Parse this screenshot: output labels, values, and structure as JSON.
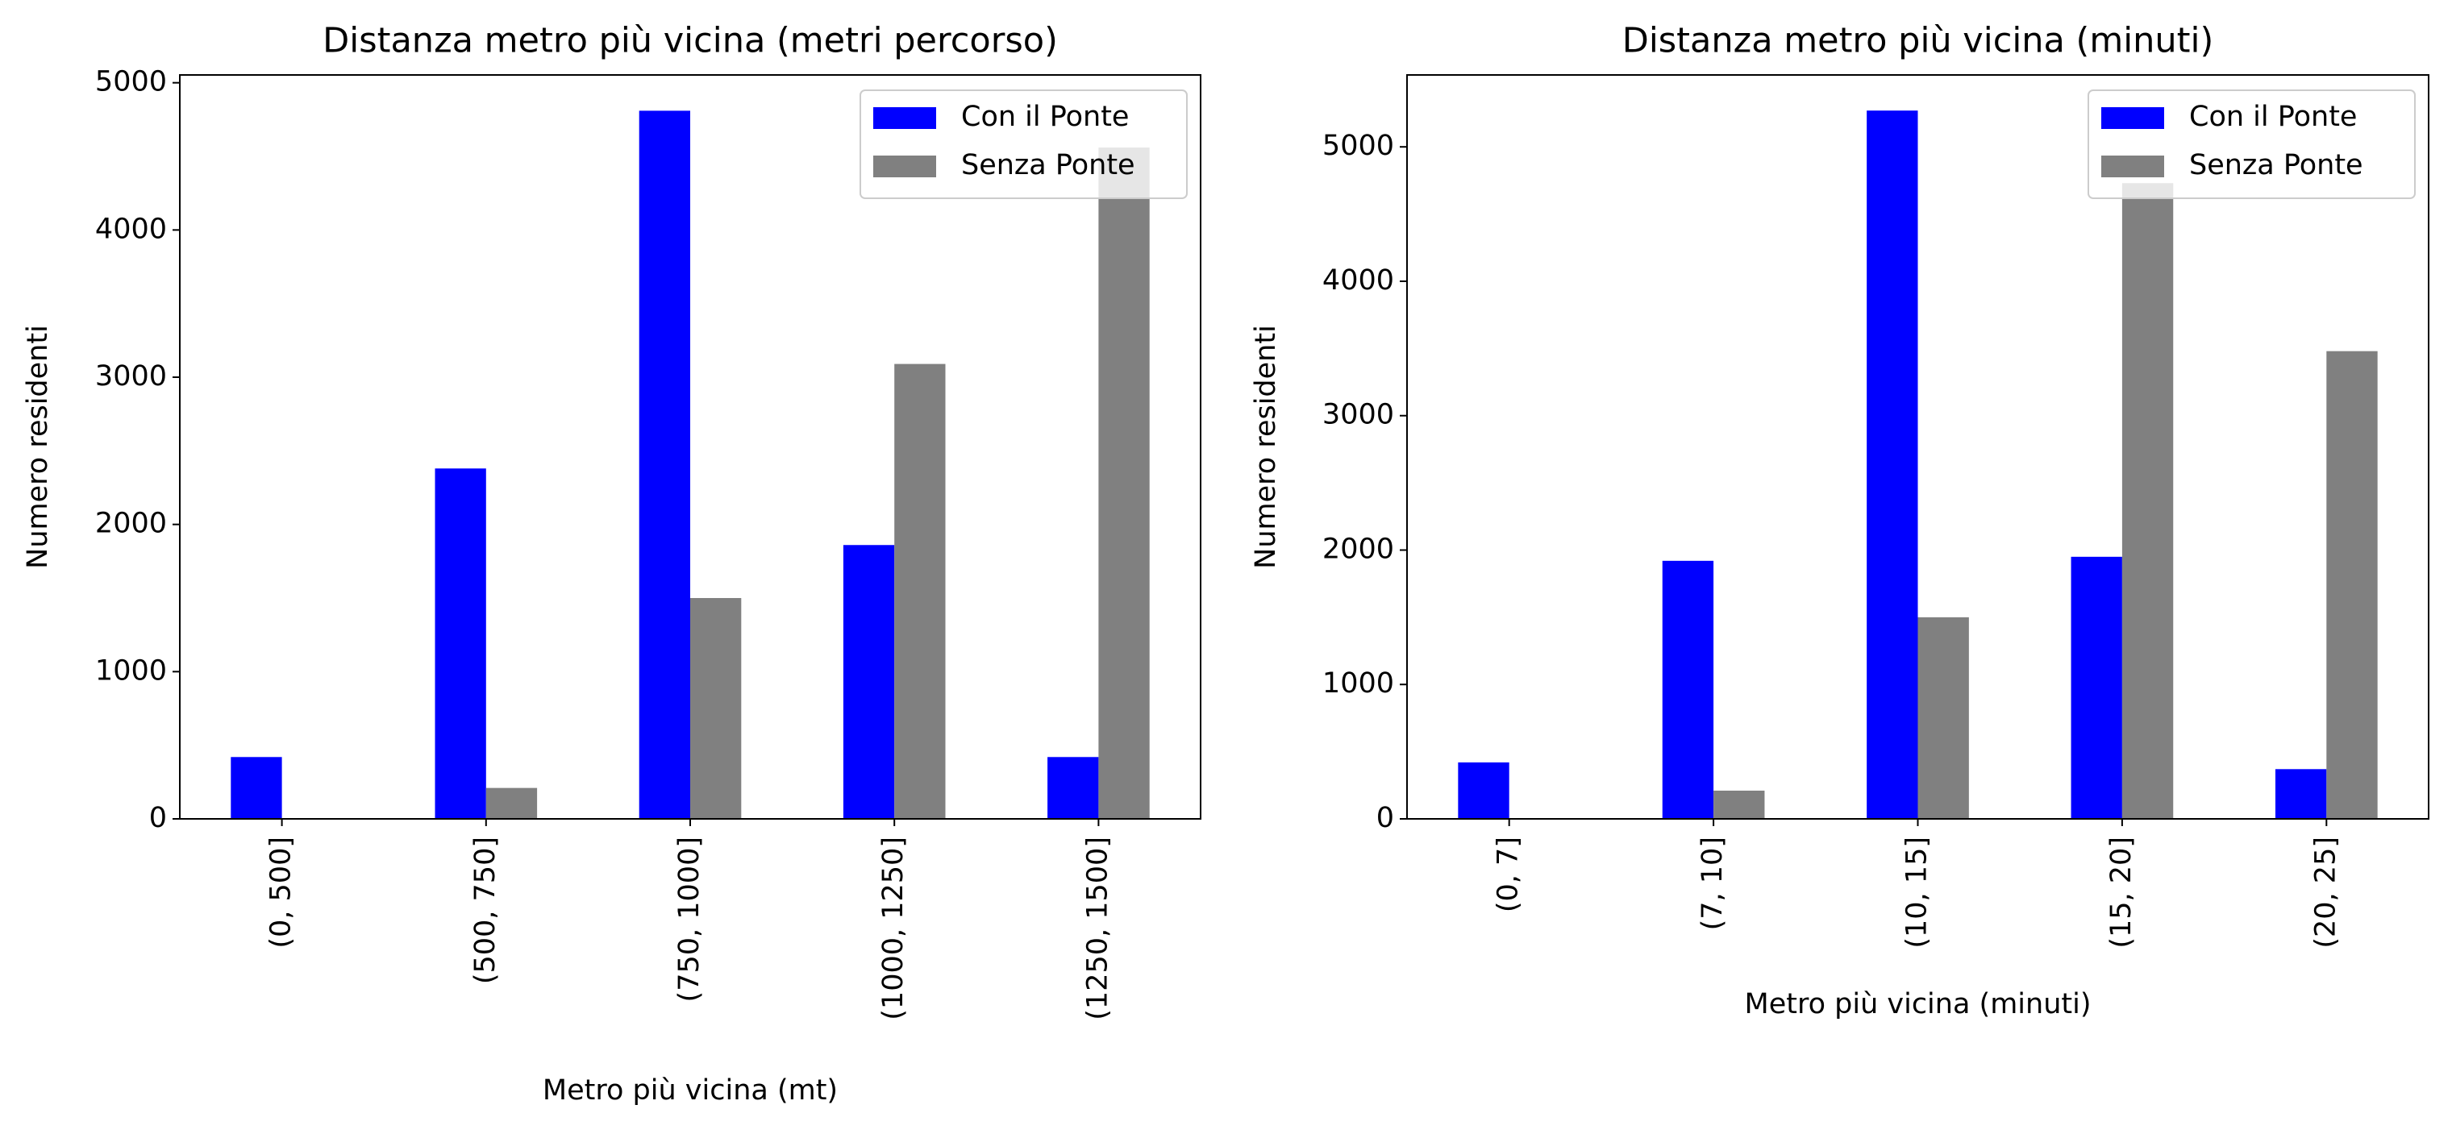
{
  "chart_data": [
    {
      "type": "bar",
      "title": "Distanza metro più vicina (metri percorso)",
      "x_label": "Metro più vicina (mt)",
      "y_label": "Numero residenti",
      "categories": [
        "(0, 500]",
        "(500, 750]",
        "(750, 1000]",
        "(1000, 1250]",
        "(1250, 1500]"
      ],
      "series": [
        {
          "name": "Con il Ponte",
          "color": "#0000ff",
          "values": [
            420,
            2380,
            4810,
            1860,
            420
          ]
        },
        {
          "name": "Senza Ponte",
          "color": "#808080",
          "values": [
            0,
            210,
            1500,
            3090,
            4560
          ]
        }
      ],
      "ylim": [
        0,
        5053
      ],
      "yticks": [
        0,
        1000,
        2000,
        3000,
        4000,
        5000
      ],
      "legend": "upper right"
    },
    {
      "type": "bar",
      "title": "Distanza metro più vicina (minuti)",
      "x_label": "Metro più vicina (minuti)",
      "y_label": "Numero residenti",
      "categories": [
        "(0, 7]",
        "(7, 10]",
        "(10, 15]",
        "(15, 20]",
        "(20, 25]"
      ],
      "series": [
        {
          "name": "Con il Ponte",
          "color": "#0000ff",
          "values": [
            420,
            1920,
            5270,
            1950,
            370
          ]
        },
        {
          "name": "Senza Ponte",
          "color": "#808080",
          "values": [
            0,
            210,
            1500,
            4730,
            3480
          ]
        }
      ],
      "ylim": [
        0,
        5535
      ],
      "yticks": [
        0,
        1000,
        2000,
        3000,
        4000,
        5000
      ],
      "legend": "upper right"
    }
  ]
}
